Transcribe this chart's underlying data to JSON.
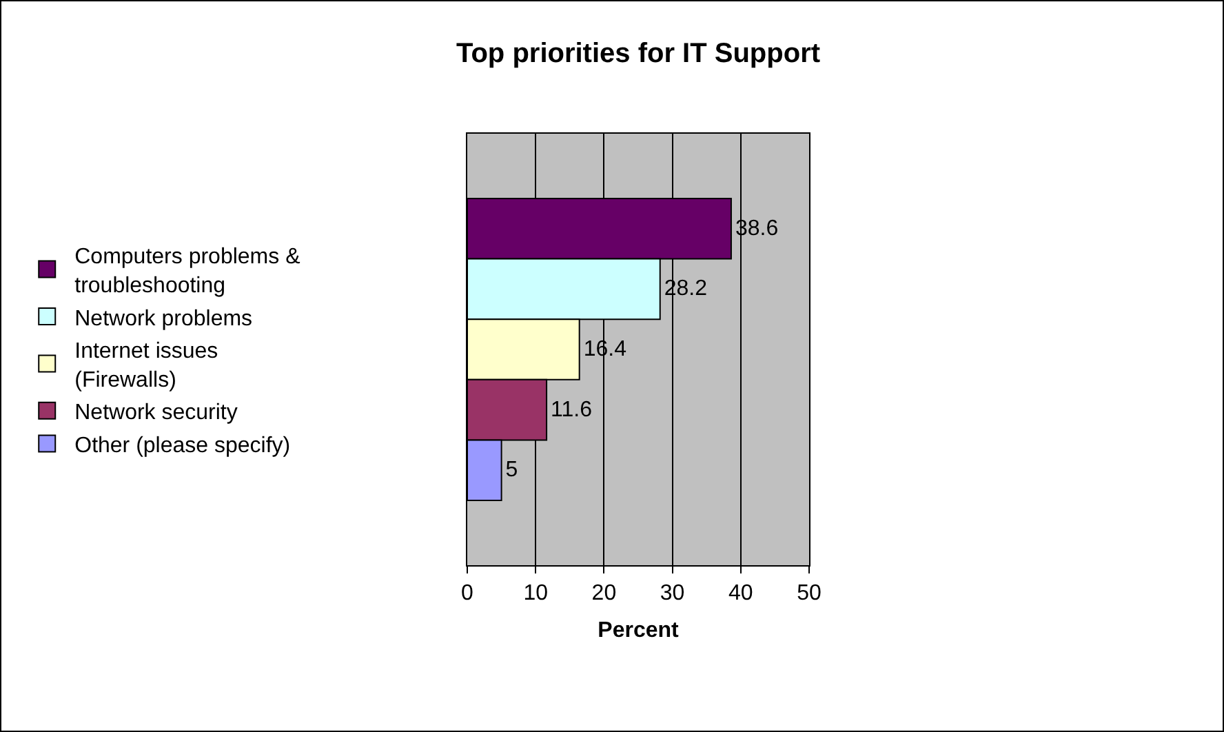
{
  "chart_data": {
    "type": "bar",
    "title": "Top priorities for IT Support",
    "orientation": "horizontal",
    "categories": [
      null
    ],
    "series": [
      {
        "name": "Computers problems & troubleshooting",
        "color": "#660066",
        "values": [
          38.6
        ]
      },
      {
        "name": "Network problems",
        "color": "#ccffff",
        "values": [
          28.2
        ]
      },
      {
        "name": "Internet issues (Firewalls)",
        "color": "#ffffcc",
        "values": [
          16.4
        ]
      },
      {
        "name": "Network security",
        "color": "#993366",
        "values": [
          11.6
        ]
      },
      {
        "name": "Other (please specify)",
        "color": "#9999ff",
        "values": [
          5
        ]
      }
    ],
    "xlim": [
      0,
      50
    ],
    "xticks": [
      0,
      10,
      20,
      30,
      40,
      50
    ],
    "xlabel": "Percent",
    "grid": "x",
    "legend": "left",
    "data_labels": true
  }
}
